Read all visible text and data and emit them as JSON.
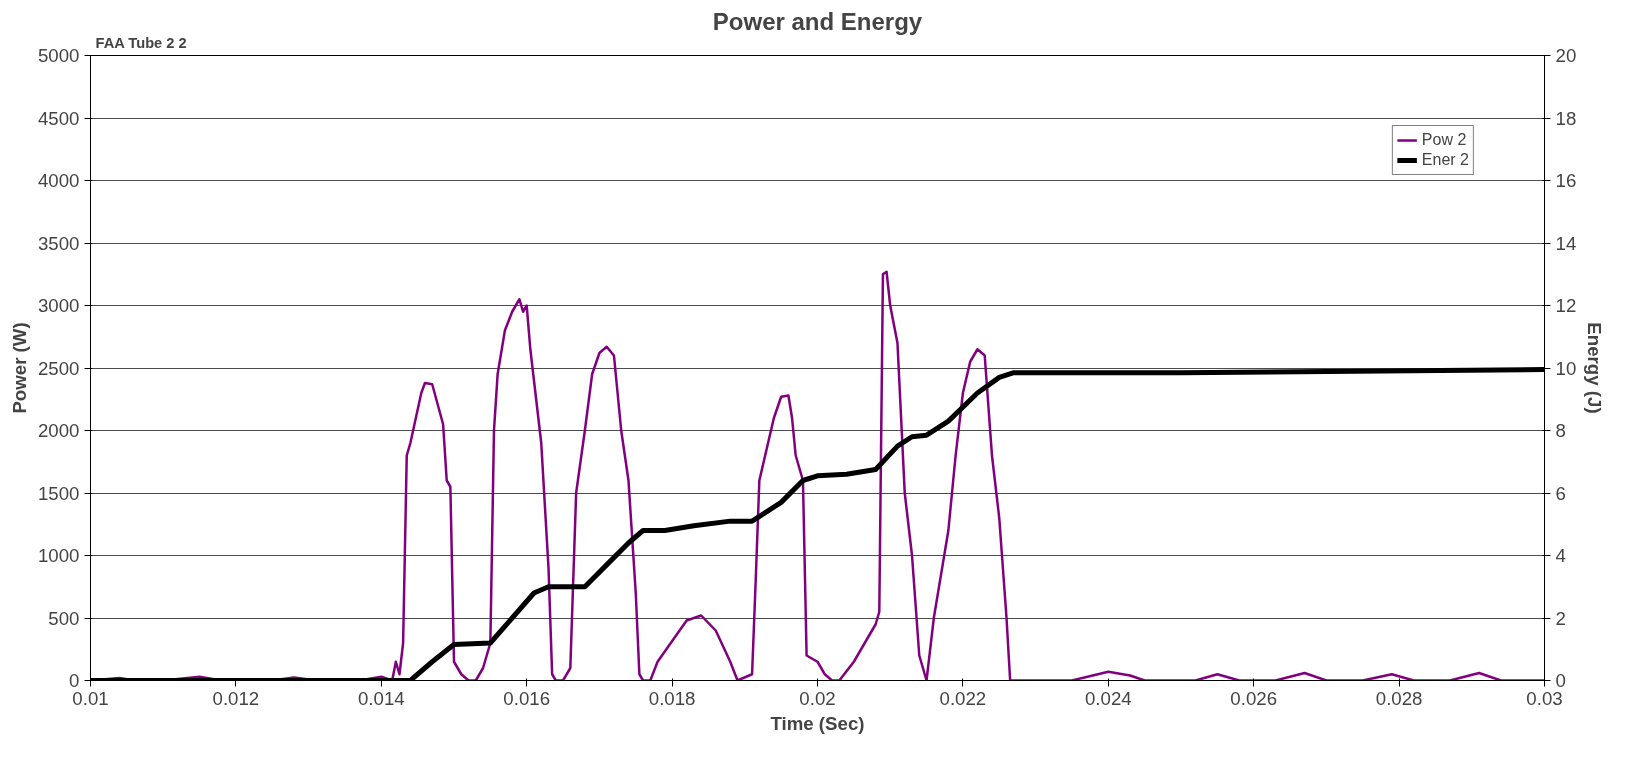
{
  "chart_data": {
    "type": "line",
    "title": "Power and Energy",
    "xlabel": "Time (Sec)",
    "ylabel": "Power (W)",
    "y2label": "Energy (J)",
    "annotations": [
      "FAA Tube 2 2"
    ],
    "xlim": [
      0.01,
      0.03
    ],
    "xticks": [
      0.01,
      0.012,
      0.014,
      0.016,
      0.018,
      0.02,
      0.022,
      0.024,
      0.026,
      0.028,
      0.03
    ],
    "ylim": [
      0,
      5000
    ],
    "yticks": [
      0,
      500,
      1000,
      1500,
      2000,
      2500,
      3000,
      3500,
      4000,
      4500,
      5000
    ],
    "y2lim": [
      0,
      20
    ],
    "y2ticks": [
      0,
      2,
      4,
      6,
      8,
      10,
      12,
      14,
      16,
      18,
      20
    ],
    "grid": "y",
    "legend": "top right",
    "marker": "none",
    "line_style": "solid",
    "series": [
      {
        "name": "Pow 2",
        "color": "#800080",
        "x": [
          0.01,
          0.0104,
          0.0106,
          0.011,
          0.0115,
          0.0118,
          0.0125,
          0.0128,
          0.0131,
          0.0137,
          0.014,
          0.01415,
          0.0142,
          0.01425,
          0.0143,
          0.01435,
          0.0144,
          0.01455,
          0.0146,
          0.0147,
          0.01485,
          0.0149,
          0.01495,
          0.015,
          0.0151,
          0.0152,
          0.0153,
          0.0154,
          0.0155,
          0.01555,
          0.0156,
          0.0157,
          0.0158,
          0.0159,
          0.01595,
          0.016,
          0.01605,
          0.0161,
          0.0162,
          0.0163,
          0.01635,
          0.0164,
          0.0165,
          0.0166,
          0.01668,
          0.0168,
          0.0169,
          0.017,
          0.0171,
          0.0172,
          0.0173,
          0.0174,
          0.0175,
          0.01755,
          0.0176,
          0.0177,
          0.0178,
          0.0182,
          0.0184,
          0.0186,
          0.0188,
          0.0189,
          0.0191,
          0.01915,
          0.0192,
          0.0194,
          0.0195,
          0.0196,
          0.01965,
          0.0197,
          0.0198,
          0.01985,
          0.02,
          0.0201,
          0.0202,
          0.0203,
          0.0205,
          0.0207,
          0.0208,
          0.02085,
          0.0209,
          0.02095,
          0.021,
          0.0211,
          0.0212,
          0.0213,
          0.0214,
          0.0215,
          0.0216,
          0.0218,
          0.0219,
          0.022,
          0.0221,
          0.0222,
          0.0223,
          0.0224,
          0.0225,
          0.0226,
          0.02265,
          0.0235,
          0.024,
          0.0243,
          0.0245,
          0.0252,
          0.0255,
          0.0258,
          0.0263,
          0.0267,
          0.027,
          0.0275,
          0.0279,
          0.0282,
          0.0287,
          0.0291,
          0.0294,
          0.03
        ],
        "values": [
          0,
          20,
          0,
          0,
          30,
          0,
          0,
          25,
          0,
          0,
          30,
          0,
          150,
          50,
          300,
          1800,
          1900,
          2300,
          2380,
          2370,
          2050,
          1600,
          1550,
          150,
          50,
          0,
          0,
          100,
          300,
          2000,
          2450,
          2800,
          2950,
          3050,
          2950,
          3000,
          2650,
          2400,
          1900,
          900,
          50,
          0,
          0,
          100,
          1500,
          2000,
          2450,
          2620,
          2670,
          2600,
          2000,
          1600,
          700,
          50,
          0,
          0,
          150,
          480,
          520,
          400,
          150,
          0,
          50,
          800,
          1600,
          2100,
          2270,
          2280,
          2100,
          1800,
          1600,
          200,
          150,
          50,
          0,
          0,
          150,
          350,
          450,
          550,
          3250,
          3270,
          3000,
          2700,
          1500,
          1000,
          200,
          0,
          500,
          1200,
          1800,
          2300,
          2550,
          2650,
          2600,
          1800,
          1300,
          500,
          0,
          0,
          70,
          40,
          0,
          0,
          50,
          0,
          0,
          60,
          0,
          0,
          50,
          0,
          0,
          60,
          0,
          0
        ]
      },
      {
        "name": "Ener 2",
        "color": "#000000",
        "axis": "y2",
        "x": [
          0.01,
          0.0144,
          0.0147,
          0.015,
          0.0155,
          0.0158,
          0.0161,
          0.0163,
          0.0168,
          0.0171,
          0.0174,
          0.0176,
          0.0179,
          0.0183,
          0.0188,
          0.0191,
          0.0195,
          0.0198,
          0.02,
          0.0204,
          0.0208,
          0.0211,
          0.0213,
          0.0215,
          0.0218,
          0.0222,
          0.0225,
          0.0227,
          0.025,
          0.03
        ],
        "values": [
          0,
          0,
          0.6,
          1.15,
          1.2,
          2.0,
          2.8,
          3.0,
          3.0,
          3.7,
          4.4,
          4.8,
          4.8,
          4.95,
          5.1,
          5.1,
          5.7,
          6.4,
          6.55,
          6.6,
          6.75,
          7.5,
          7.8,
          7.85,
          8.3,
          9.2,
          9.7,
          9.85,
          9.85,
          9.95
        ]
      }
    ]
  }
}
